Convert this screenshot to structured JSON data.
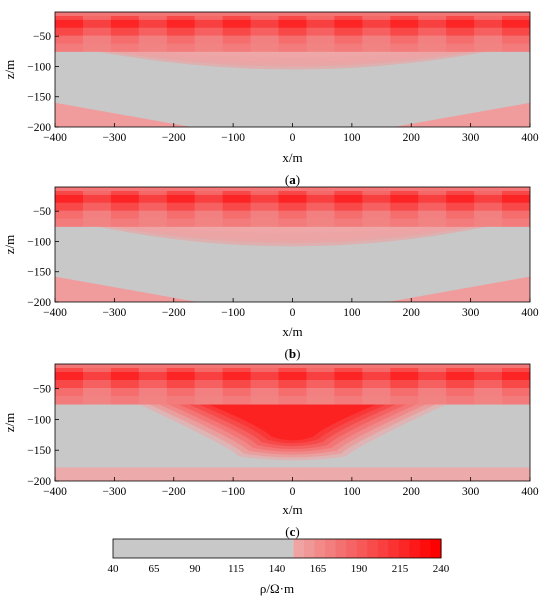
{
  "colors": {
    "background": "#c8c8c8",
    "high": "#ff0000",
    "border": "#000000"
  },
  "chart_data": [
    {
      "type": "heatmap",
      "panel_label": "(a)",
      "panel_letter": "a",
      "xlabel": "x/m",
      "ylabel": "z/m",
      "xlim": [
        -400,
        400
      ],
      "ylim": [
        -200,
        -10
      ],
      "xticks": [
        -400,
        -300,
        -200,
        -100,
        0,
        100,
        200,
        300,
        400
      ],
      "yticks": [
        -50,
        -100,
        -150,
        -200
      ],
      "model": {
        "surface_layer": {
          "z_top": -10,
          "z_base": -75,
          "resistivity": 240,
          "cells_x": 17,
          "cells_z": 5
        },
        "central_bulge": {
          "x_center": 0,
          "half_width": 330,
          "z_base": -105,
          "resistivity": 160
        },
        "background_resistivity": 140,
        "bottom_corners": {
          "left_x_end": -170,
          "right_x_start": 170,
          "z_top": -160,
          "resistivity": 160
        }
      }
    },
    {
      "type": "heatmap",
      "panel_label": "(b)",
      "panel_letter": "b",
      "xlabel": "x/m",
      "ylabel": "z/m",
      "xlim": [
        -400,
        400
      ],
      "ylim": [
        -200,
        -10
      ],
      "xticks": [
        -400,
        -300,
        -200,
        -100,
        0,
        100,
        200,
        300,
        400
      ],
      "yticks": [
        -50,
        -100,
        -150,
        -200
      ],
      "model": {
        "surface_layer": {
          "z_top": -10,
          "z_base": -75,
          "resistivity": 240,
          "cells_x": 17,
          "cells_z": 5
        },
        "central_bulge": {
          "x_center": 0,
          "half_width": 330,
          "z_base": -108,
          "resistivity": 160
        },
        "background_resistivity": 140,
        "bottom_corners": {
          "left_x_end": -160,
          "right_x_start": 160,
          "z_top": -158,
          "resistivity": 160
        }
      }
    },
    {
      "type": "heatmap",
      "panel_label": "(c)",
      "panel_letter": "c",
      "xlabel": "x/m",
      "ylabel": "z/m",
      "xlim": [
        -400,
        400
      ],
      "ylim": [
        -200,
        -10
      ],
      "xticks": [
        -400,
        -300,
        -200,
        -100,
        0,
        100,
        200,
        300,
        400
      ],
      "yticks": [
        -50,
        -100,
        -150,
        -200
      ],
      "model": {
        "surface_layer": {
          "z_top": -10,
          "z_base": -75,
          "resistivity": 240,
          "cells_x": 17,
          "cells_z": 5
        },
        "central_wedge": {
          "top_x": [
            -260,
            260
          ],
          "bottom_x": [
            -90,
            90
          ],
          "z_bottom": -160,
          "resistivity": 200
        },
        "background_resistivity": 140,
        "bottom_band": {
          "z_top": -178,
          "resistivity": 155
        }
      }
    }
  ],
  "colorbar": {
    "label": "ρ/Ω·m",
    "range": [
      40,
      240
    ],
    "ticks": [
      40,
      65,
      90,
      115,
      140,
      165,
      190,
      215,
      240
    ],
    "gray_until": 150,
    "low_color": "#c8c8c8",
    "high_color": "#ff0000"
  }
}
